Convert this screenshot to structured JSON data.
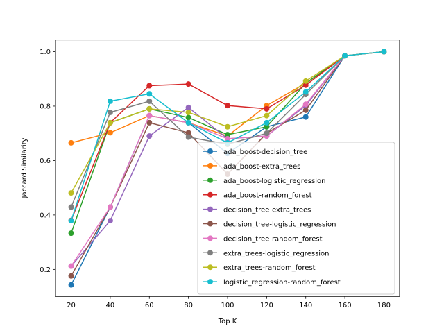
{
  "chart_data": {
    "type": "line",
    "title": "",
    "xlabel": "Top K",
    "ylabel": "Jaccard Similarity",
    "x": [
      20,
      40,
      60,
      80,
      100,
      120,
      140,
      160,
      180
    ],
    "xticks": [
      "20",
      "40",
      "60",
      "80",
      "100",
      "120",
      "140",
      "160",
      "180"
    ],
    "yticks": [
      "0.2",
      "0.4",
      "0.6",
      "0.8",
      "1.0"
    ],
    "ytick_values": [
      0.2,
      0.4,
      0.6,
      0.8,
      1.0
    ],
    "xlim": [
      12,
      188
    ],
    "ylim": [
      0.101,
      1.043
    ],
    "grid": false,
    "legend_position": "lower-right",
    "series": [
      {
        "name": "ada_boost-decision_tree",
        "color": "#1f77b4",
        "values": [
          0.143,
          0.429,
          0.765,
          0.739,
          0.626,
          0.724,
          0.76,
          0.985,
          1.0
        ]
      },
      {
        "name": "ada_boost-extra_trees",
        "color": "#ff7f0e",
        "values": [
          0.665,
          0.702,
          0.765,
          0.739,
          0.69,
          0.802,
          0.884,
          0.985,
          1.0
        ]
      },
      {
        "name": "ada_boost-logistic_regression",
        "color": "#2ca02c",
        "values": [
          0.333,
          0.739,
          0.79,
          0.758,
          0.695,
          0.724,
          0.884,
          0.985,
          1.0
        ]
      },
      {
        "name": "ada_boost-random_forest",
        "color": "#d62728",
        "values": [
          0.38,
          0.739,
          0.875,
          0.881,
          0.802,
          0.79,
          0.877,
          0.985,
          1.0
        ]
      },
      {
        "name": "decision_tree-extra_trees",
        "color": "#9467bd",
        "values": [
          0.212,
          0.379,
          0.69,
          0.795,
          0.68,
          0.69,
          0.802,
          0.985,
          1.0
        ]
      },
      {
        "name": "decision_tree-logistic_regression",
        "color": "#8c564b",
        "values": [
          0.176,
          0.429,
          0.739,
          0.702,
          0.55,
          0.7,
          0.785,
          0.985,
          1.0
        ]
      },
      {
        "name": "decision_tree-random_forest",
        "color": "#e377c2",
        "values": [
          0.212,
          0.429,
          0.765,
          0.739,
          0.68,
          0.69,
          0.807,
          0.985,
          1.0
        ]
      },
      {
        "name": "extra_trees-logistic_regression",
        "color": "#7f7f7f",
        "values": [
          0.429,
          0.777,
          0.818,
          0.686,
          0.66,
          0.7,
          0.843,
          0.985,
          1.0
        ]
      },
      {
        "name": "extra_trees-random_forest",
        "color": "#bcbd22",
        "values": [
          0.481,
          0.739,
          0.79,
          0.777,
          0.724,
          0.765,
          0.892,
          0.985,
          1.0
        ]
      },
      {
        "name": "logistic_regression-random_forest",
        "color": "#17becf",
        "values": [
          0.379,
          0.818,
          0.845,
          0.739,
          0.665,
          0.739,
          0.852,
          0.985,
          1.0
        ]
      }
    ]
  }
}
